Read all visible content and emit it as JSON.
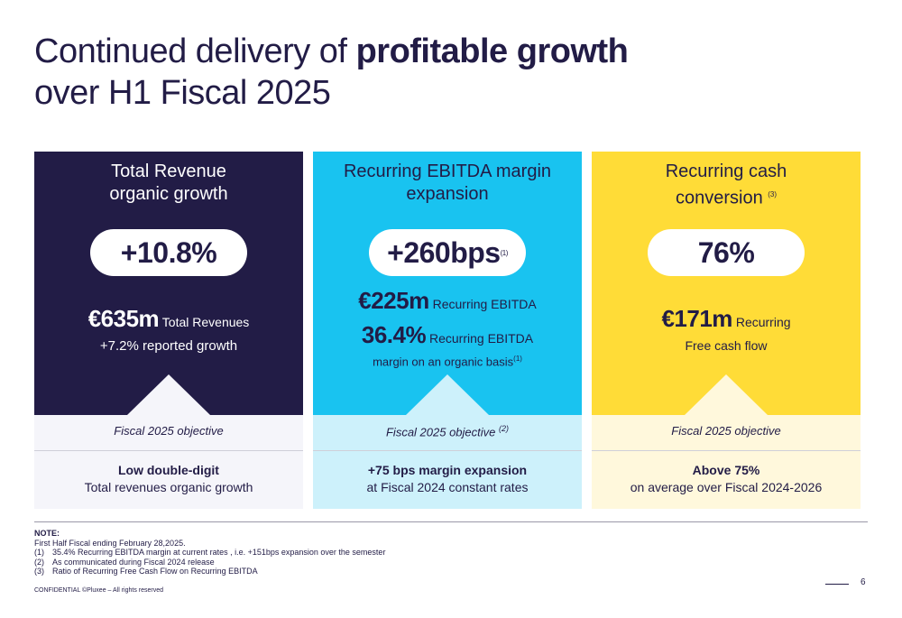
{
  "title": {
    "line1_regular": "Continued delivery of ",
    "line1_bold": "profitable growth",
    "line2": "over H1 Fiscal 2025"
  },
  "cards": [
    {
      "title_l1": "Total Revenue",
      "title_l2": "organic growth",
      "headline": "+10.8%",
      "m1_big": "€635m",
      "m1_small": " Total Revenues",
      "m1_sub": "+7.2% reported growth",
      "objective_label": "Fiscal 2025 objective",
      "objective_main": "Low double-digit",
      "objective_sub": "Total revenues organic growth",
      "color": "#221c46"
    },
    {
      "title_l1": "Recurring EBITDA margin",
      "title_l2": "expansion",
      "headline": "+260bps",
      "headline_note": "(1)",
      "m1_big": "€225m",
      "m1_small": " Recurring EBITDA",
      "m2_big": "36.4%",
      "m2_small": " Recurring EBITDA",
      "m2_sub": "margin on an organic basis",
      "m2_note": "(1)",
      "objective_label": "Fiscal 2025 objective ",
      "objective_note": "(2)",
      "objective_main": "+75 bps margin expansion",
      "objective_sub": "at Fiscal 2024 constant rates",
      "color": "#19c3f0"
    },
    {
      "title_l1": "Recurring cash",
      "title_l2": "conversion",
      "title_note": "(3)",
      "headline": "76%",
      "m1_big": "€171m",
      "m1_small": " Recurring",
      "m1_sub": "Free cash flow",
      "objective_label": "Fiscal 2025 objective",
      "objective_main": "Above 75%",
      "objective_sub": "on average over Fiscal 2024-2026",
      "color": "#ffdc37"
    }
  ],
  "notes": {
    "heading": "NOTE:",
    "intro": "First Half Fiscal ending February 28,2025.",
    "items": [
      {
        "num": "(1)",
        "text": "35.4% Recurring EBITDA margin at current rates , i.e. +151bps expansion over the semester"
      },
      {
        "num": "(2)",
        "text": "As communicated during Fiscal 2024 release"
      },
      {
        "num": "(3)",
        "text": "Ratio of Recurring Free Cash Flow on Recurring EBITDA"
      }
    ]
  },
  "footer": "CONFIDENTIAL ©Pluxee – All rights reserved",
  "page_number": "6"
}
